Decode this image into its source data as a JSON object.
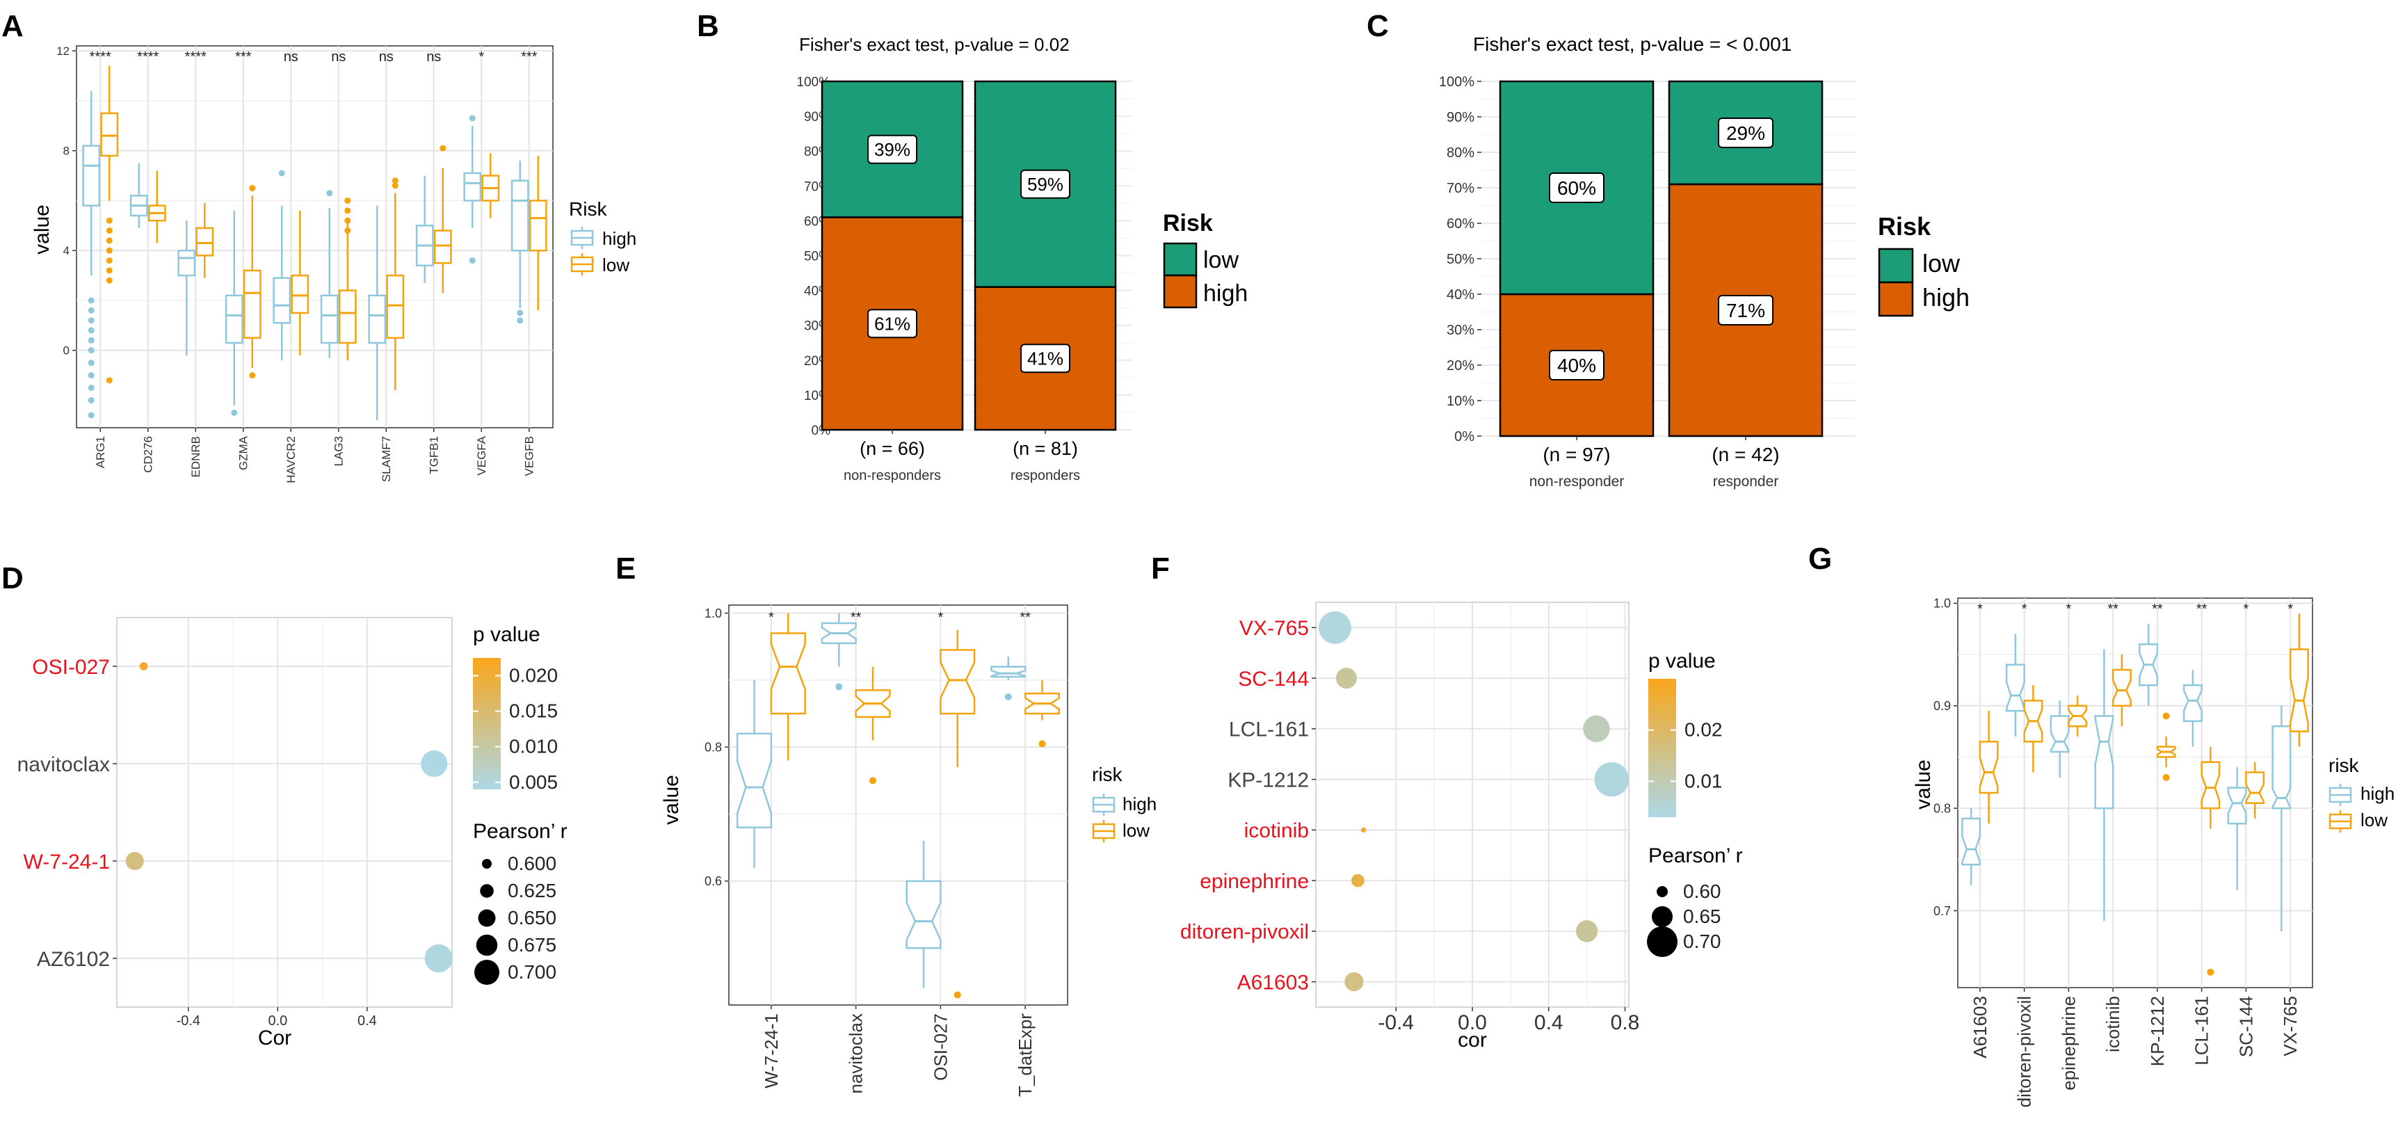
{
  "colors": {
    "high_box": "#8FC8DC",
    "low_box": "#F5A30C",
    "fisher_low": "#1B9E77",
    "fisher_high": "#D95F02",
    "red_label": "#E8121D",
    "panel_bg": "#FFFFFF",
    "grid": "#E4E4E4",
    "p_grad_low": "#ADD8E6",
    "p_grad_high": "#F9A61A"
  },
  "panels": [
    {
      "letter": "A"
    },
    {
      "letter": "B"
    },
    {
      "letter": "C"
    },
    {
      "letter": "D"
    },
    {
      "letter": "E"
    },
    {
      "letter": "F"
    },
    {
      "letter": "G"
    }
  ],
  "chart_data": [
    {
      "id": "A",
      "type": "box",
      "ylabel": "value",
      "ylim": [
        -3.1,
        12.2
      ],
      "yticks": [
        0,
        4,
        8,
        12
      ],
      "categories": [
        "ARG1",
        "CD276",
        "EDNRB",
        "GZMA",
        "HAVCR2",
        "LAG3",
        "SLAMF7",
        "TGFB1",
        "VEGFA",
        "VEGFB"
      ],
      "signif": [
        "****",
        "****",
        "****",
        "***",
        "ns",
        "ns",
        "ns",
        "ns",
        "*",
        "***"
      ],
      "legend": {
        "title": "Risk",
        "items": [
          "high",
          "low"
        ]
      },
      "series": [
        {
          "name": "high",
          "boxes": [
            {
              "min": 3.0,
              "q1": 5.8,
              "med": 7.4,
              "q3": 8.2,
              "max": 10.4,
              "out": [
                2.0,
                1.6,
                1.2,
                0.8,
                0.4,
                0.0,
                -0.5,
                -1.0,
                -1.5,
                -2.0,
                -2.6
              ]
            },
            {
              "min": 4.9,
              "q1": 5.4,
              "med": 5.8,
              "q3": 6.2,
              "max": 7.5,
              "out": []
            },
            {
              "min": -0.2,
              "q1": 3.0,
              "med": 3.7,
              "q3": 4.0,
              "max": 5.2,
              "out": []
            },
            {
              "min": -2.2,
              "q1": 0.3,
              "med": 1.4,
              "q3": 2.2,
              "max": 5.6,
              "out": [
                -2.5
              ]
            },
            {
              "min": -0.4,
              "q1": 1.1,
              "med": 1.8,
              "q3": 2.9,
              "max": 5.8,
              "out": [
                7.1
              ]
            },
            {
              "min": -0.3,
              "q1": 0.3,
              "med": 1.4,
              "q3": 2.2,
              "max": 5.7,
              "out": [
                6.3
              ]
            },
            {
              "min": -2.8,
              "q1": 0.3,
              "med": 1.4,
              "q3": 2.2,
              "max": 5.8,
              "out": []
            },
            {
              "min": 2.7,
              "q1": 3.4,
              "med": 4.2,
              "q3": 5.0,
              "max": 7.0,
              "out": []
            },
            {
              "min": 4.9,
              "q1": 6.0,
              "med": 6.7,
              "q3": 7.1,
              "max": 9.0,
              "out": [
                9.3,
                3.6
              ]
            },
            {
              "min": 1.7,
              "q1": 4.0,
              "med": 6.0,
              "q3": 6.8,
              "max": 7.6,
              "out": [
                1.5,
                1.2
              ]
            }
          ]
        },
        {
          "name": "low",
          "boxes": [
            {
              "min": 6.0,
              "q1": 7.8,
              "med": 8.6,
              "q3": 9.5,
              "max": 11.4,
              "out": [
                5.2,
                4.8,
                4.4,
                4.0,
                3.6,
                3.2,
                2.8,
                -1.2
              ]
            },
            {
              "min": 4.3,
              "q1": 5.2,
              "med": 5.5,
              "q3": 5.8,
              "max": 7.2,
              "out": []
            },
            {
              "min": 2.9,
              "q1": 3.8,
              "med": 4.3,
              "q3": 4.9,
              "max": 5.9,
              "out": []
            },
            {
              "min": -0.7,
              "q1": 0.5,
              "med": 2.3,
              "q3": 3.2,
              "max": 6.2,
              "out": [
                6.5,
                -1.0
              ]
            },
            {
              "min": -0.2,
              "q1": 1.5,
              "med": 2.2,
              "q3": 3.0,
              "max": 5.6,
              "out": []
            },
            {
              "min": -0.4,
              "q1": 0.3,
              "med": 1.5,
              "q3": 2.4,
              "max": 5.2,
              "out": [
                6.0,
                5.6,
                5.2,
                4.8
              ]
            },
            {
              "min": -1.6,
              "q1": 0.5,
              "med": 1.8,
              "q3": 3.0,
              "max": 6.3,
              "out": [
                6.8,
                6.6
              ]
            },
            {
              "min": 2.3,
              "q1": 3.5,
              "med": 4.2,
              "q3": 4.8,
              "max": 7.3,
              "out": [
                8.1
              ]
            },
            {
              "min": 5.3,
              "q1": 6.0,
              "med": 6.5,
              "q3": 7.0,
              "max": 7.9,
              "out": []
            },
            {
              "min": 1.6,
              "q1": 4.0,
              "med": 5.3,
              "q3": 6.0,
              "max": 7.8,
              "out": []
            }
          ]
        }
      ]
    },
    {
      "id": "B",
      "type": "bar",
      "stacked": true,
      "title": "Fisher's exact test, p-value = 0.02",
      "categories": [
        "non-responders",
        "responders"
      ],
      "n_labels": [
        "(n = 66)",
        "(n = 81)"
      ],
      "yticks": [
        "0%",
        "10%",
        "20%",
        "30%",
        "40%",
        "50%",
        "60%",
        "70%",
        "80%",
        "90%",
        "100%"
      ],
      "legend": {
        "title": "Risk",
        "items": [
          "low",
          "high"
        ]
      },
      "series": [
        {
          "name": "high",
          "values": [
            61,
            41
          ],
          "labels": [
            "61%",
            "41%"
          ]
        },
        {
          "name": "low",
          "values": [
            39,
            59
          ],
          "labels": [
            "39%",
            "59%"
          ]
        }
      ]
    },
    {
      "id": "C",
      "type": "bar",
      "stacked": true,
      "title": "Fisher's exact test, p-value = < 0.001",
      "categories": [
        "non-responder",
        "responder"
      ],
      "n_labels": [
        "(n = 97)",
        "(n = 42)"
      ],
      "yticks": [
        "0%",
        "10%",
        "20%",
        "30%",
        "40%",
        "50%",
        "60%",
        "70%",
        "80%",
        "90%",
        "100%"
      ],
      "legend": {
        "title": "Risk",
        "items": [
          "low",
          "high"
        ]
      },
      "series": [
        {
          "name": "high",
          "values": [
            40,
            71
          ],
          "labels": [
            "40%",
            "71%"
          ]
        },
        {
          "name": "low",
          "values": [
            60,
            29
          ],
          "labels": [
            "60%",
            "29%"
          ]
        }
      ]
    },
    {
      "id": "D",
      "type": "scatter",
      "xlabel": "Cor",
      "xlim": [
        -0.72,
        0.78
      ],
      "xticks": [
        "-0.4",
        "0.0",
        "0.4"
      ],
      "xtick_values": [
        -0.4,
        0.0,
        0.4
      ],
      "ylabels": [
        "OSI-027",
        "navitoclax",
        "W-7-24-1",
        "AZ6102"
      ],
      "ylabel_red": [
        true,
        false,
        true,
        false
      ],
      "points": [
        {
          "cor": -0.6,
          "p": 0.0215,
          "r": 0.59
        },
        {
          "cor": 0.7,
          "p": 0.004,
          "r": 0.71
        },
        {
          "cor": -0.64,
          "p": 0.0135,
          "r": 0.655
        },
        {
          "cor": 0.72,
          "p": 0.0045,
          "r": 0.72
        }
      ],
      "legend_p": {
        "title": "p value",
        "ticks": [
          "0.020",
          "0.015",
          "0.010",
          "0.005"
        ],
        "tick_values": [
          0.02,
          0.015,
          0.01,
          0.005
        ],
        "range": [
          0.004,
          0.0225
        ]
      },
      "legend_r": {
        "title": "Pearson’ r",
        "ticks": [
          "0.600",
          "0.625",
          "0.650",
          "0.675",
          "0.700"
        ],
        "tick_values": [
          0.6,
          0.625,
          0.65,
          0.675,
          0.7
        ]
      }
    },
    {
      "id": "E",
      "type": "box",
      "ylabel": "value",
      "ylim": [
        0.415,
        1.012
      ],
      "yticks": [
        "0.6",
        "0.8",
        "1.0"
      ],
      "ytick_values": [
        0.6,
        0.8,
        1.0
      ],
      "categories": [
        "W-7-24-1",
        "navitoclax",
        "OSI-027",
        "T_datExpr"
      ],
      "signif": [
        "*",
        "**",
        "*",
        "**"
      ],
      "legend": {
        "title": "risk",
        "items": [
          "high",
          "low"
        ]
      },
      "series": [
        {
          "name": "high",
          "boxes": [
            {
              "min": 0.62,
              "q1": 0.68,
              "med": 0.74,
              "q3": 0.82,
              "max": 0.9,
              "out": []
            },
            {
              "min": 0.92,
              "q1": 0.955,
              "med": 0.97,
              "q3": 0.985,
              "max": 1.0,
              "out": [
                0.89
              ]
            },
            {
              "min": 0.44,
              "q1": 0.5,
              "med": 0.54,
              "q3": 0.6,
              "max": 0.66,
              "out": []
            },
            {
              "min": 0.9,
              "q1": 0.905,
              "med": 0.91,
              "q3": 0.92,
              "max": 0.935,
              "out": [
                0.875
              ]
            }
          ]
        },
        {
          "name": "low",
          "boxes": [
            {
              "min": 0.78,
              "q1": 0.85,
              "med": 0.92,
              "q3": 0.97,
              "max": 1.0,
              "out": []
            },
            {
              "min": 0.81,
              "q1": 0.845,
              "med": 0.865,
              "q3": 0.885,
              "max": 0.92,
              "out": [
                0.75
              ]
            },
            {
              "min": 0.77,
              "q1": 0.85,
              "med": 0.9,
              "q3": 0.945,
              "max": 0.975,
              "out": [
                0.43
              ]
            },
            {
              "min": 0.84,
              "q1": 0.85,
              "med": 0.865,
              "q3": 0.88,
              "max": 0.9,
              "out": [
                0.805
              ]
            }
          ]
        }
      ]
    },
    {
      "id": "F",
      "type": "scatter",
      "xlabel": "cor",
      "xlim": [
        -0.82,
        0.82
      ],
      "xticks": [
        "-0.4",
        "0.0",
        "0.4",
        "0.8"
      ],
      "xtick_values": [
        -0.4,
        0.0,
        0.4,
        0.8
      ],
      "ylabels": [
        "VX-765",
        "SC-144",
        "LCL-161",
        "KP-1212",
        "icotinib",
        "epinephrine",
        "ditoren-pivoxil",
        "A61603"
      ],
      "ylabel_red": [
        true,
        true,
        false,
        false,
        true,
        true,
        true,
        true
      ],
      "points": [
        {
          "cor": -0.72,
          "p": 0.004,
          "r": 0.71
        },
        {
          "cor": -0.66,
          "p": 0.013,
          "r": 0.65
        },
        {
          "cor": 0.65,
          "p": 0.009,
          "r": 0.68
        },
        {
          "cor": 0.73,
          "p": 0.004,
          "r": 0.72
        },
        {
          "cor": -0.57,
          "p": 0.027,
          "r": 0.57
        },
        {
          "cor": -0.6,
          "p": 0.024,
          "r": 0.61
        },
        {
          "cor": 0.6,
          "p": 0.013,
          "r": 0.655
        },
        {
          "cor": -0.62,
          "p": 0.016,
          "r": 0.64
        }
      ],
      "legend_p": {
        "title": "p value",
        "ticks": [
          "0.02",
          "0.01"
        ],
        "tick_values": [
          0.02,
          0.01
        ],
        "range": [
          0.003,
          0.03
        ]
      },
      "legend_r": {
        "title": "Pearson’ r",
        "ticks": [
          "0.60",
          "0.65",
          "0.70"
        ],
        "tick_values": [
          0.6,
          0.65,
          0.7
        ]
      }
    },
    {
      "id": "G",
      "type": "box",
      "ylabel": "value",
      "ylim": [
        0.625,
        1.005
      ],
      "yticks": [
        "0.7",
        "0.8",
        "0.9",
        "1.0"
      ],
      "ytick_values": [
        0.7,
        0.8,
        0.9,
        1.0
      ],
      "categories": [
        "A61603",
        "ditoren-pivoxil",
        "epinephrine",
        "icotinib",
        "KP-1212",
        "LCL-161",
        "SC-144",
        "VX-765"
      ],
      "signif": [
        "*",
        "*",
        "*",
        "**",
        "**",
        "**",
        "*",
        "*"
      ],
      "legend": {
        "title": "risk",
        "items": [
          "high",
          "low"
        ]
      },
      "series": [
        {
          "name": "high",
          "boxes": [
            {
              "min": 0.725,
              "q1": 0.745,
              "med": 0.76,
              "q3": 0.79,
              "max": 0.8,
              "out": []
            },
            {
              "min": 0.87,
              "q1": 0.895,
              "med": 0.91,
              "q3": 0.94,
              "max": 0.97,
              "out": []
            },
            {
              "min": 0.83,
              "q1": 0.855,
              "med": 0.865,
              "q3": 0.89,
              "max": 0.905,
              "out": []
            },
            {
              "min": 0.69,
              "q1": 0.8,
              "med": 0.865,
              "q3": 0.89,
              "max": 0.955,
              "out": []
            },
            {
              "min": 0.9,
              "q1": 0.92,
              "med": 0.94,
              "q3": 0.96,
              "max": 0.98,
              "out": []
            },
            {
              "min": 0.86,
              "q1": 0.885,
              "med": 0.905,
              "q3": 0.92,
              "max": 0.935,
              "out": []
            },
            {
              "min": 0.72,
              "q1": 0.785,
              "med": 0.805,
              "q3": 0.82,
              "max": 0.84,
              "out": []
            },
            {
              "min": 0.68,
              "q1": 0.8,
              "med": 0.81,
              "q3": 0.88,
              "max": 0.9,
              "out": []
            }
          ]
        },
        {
          "name": "low",
          "boxes": [
            {
              "min": 0.785,
              "q1": 0.815,
              "med": 0.835,
              "q3": 0.865,
              "max": 0.895,
              "out": []
            },
            {
              "min": 0.835,
              "q1": 0.865,
              "med": 0.885,
              "q3": 0.905,
              "max": 0.92,
              "out": []
            },
            {
              "min": 0.87,
              "q1": 0.88,
              "med": 0.89,
              "q3": 0.9,
              "max": 0.91,
              "out": []
            },
            {
              "min": 0.88,
              "q1": 0.9,
              "med": 0.915,
              "q3": 0.935,
              "max": 0.95,
              "out": []
            },
            {
              "min": 0.84,
              "q1": 0.85,
              "med": 0.855,
              "q3": 0.86,
              "max": 0.87,
              "out": [
                0.89,
                0.83
              ]
            },
            {
              "min": 0.78,
              "q1": 0.8,
              "med": 0.82,
              "q3": 0.845,
              "max": 0.86,
              "out": [
                0.64
              ]
            },
            {
              "min": 0.79,
              "q1": 0.805,
              "med": 0.815,
              "q3": 0.835,
              "max": 0.845,
              "out": []
            },
            {
              "min": 0.86,
              "q1": 0.875,
              "med": 0.905,
              "q3": 0.955,
              "max": 0.99,
              "out": []
            }
          ]
        }
      ]
    }
  ]
}
